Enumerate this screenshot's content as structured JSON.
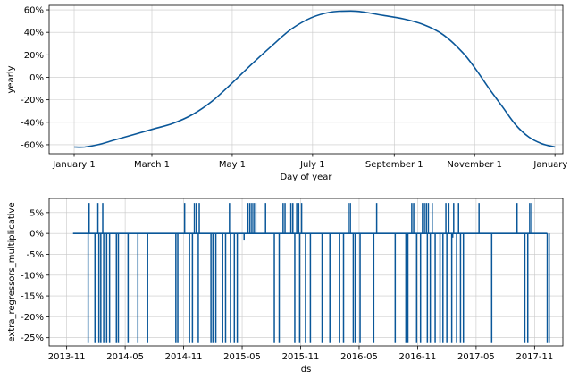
{
  "colors": {
    "line": "#0a5799",
    "grid": "#c8c8c8",
    "axis": "#000000"
  },
  "chart_data": [
    {
      "type": "line",
      "title": "",
      "xlabel": "Day of year",
      "ylabel": "yearly",
      "grid": true,
      "x_ticks": [
        {
          "day": 0,
          "label": "January 1"
        },
        {
          "day": 59,
          "label": "March 1"
        },
        {
          "day": 120,
          "label": "May 1"
        },
        {
          "day": 181,
          "label": "July 1"
        },
        {
          "day": 243,
          "label": "September 1"
        },
        {
          "day": 304,
          "label": "November 1"
        },
        {
          "day": 365,
          "label": "January 1"
        }
      ],
      "y_ticks": [
        {
          "value": -60,
          "label": "-60%"
        },
        {
          "value": -40,
          "label": "-40%"
        },
        {
          "value": -20,
          "label": "-20%"
        },
        {
          "value": 0,
          "label": "0%"
        },
        {
          "value": 20,
          "label": "20%"
        },
        {
          "value": 40,
          "label": "40%"
        },
        {
          "value": 60,
          "label": "60%"
        }
      ],
      "xlim": [
        -19,
        371
      ],
      "ylim": [
        -68,
        64
      ],
      "series": [
        {
          "x": [
            0,
            8,
            18,
            30,
            45,
            60,
            75,
            90,
            105,
            120,
            135,
            150,
            165,
            180,
            195,
            210,
            220,
            235,
            250,
            265,
            280,
            295,
            305,
            315,
            325,
            335,
            345,
            355,
            365
          ],
          "values": [
            -62,
            -62,
            -60,
            -56,
            -51,
            -46,
            -41,
            -33,
            -21,
            -5,
            12,
            28,
            43,
            53,
            58,
            59,
            58,
            55,
            52,
            47,
            38,
            22,
            7,
            -10,
            -26,
            -42,
            -53,
            -59,
            -62
          ]
        }
      ]
    },
    {
      "type": "line",
      "title": "",
      "xlabel": "ds",
      "ylabel": "extra_regressors_multiplicative",
      "grid": true,
      "x_ticks": [
        {
          "value": 0,
          "label": "2013-11"
        },
        {
          "value": 6,
          "label": "2014-05"
        },
        {
          "value": 12,
          "label": "2014-11"
        },
        {
          "value": 18,
          "label": "2015-05"
        },
        {
          "value": 24,
          "label": "2015-11"
        },
        {
          "value": 30,
          "label": "2016-05"
        },
        {
          "value": 36,
          "label": "2016-11"
        },
        {
          "value": 42,
          "label": "2017-05"
        },
        {
          "value": 48,
          "label": "2017-11"
        }
      ],
      "y_ticks": [
        {
          "value": -25,
          "label": "-25%"
        },
        {
          "value": -20,
          "label": "-20%"
        },
        {
          "value": -15,
          "label": "-15%"
        },
        {
          "value": -10,
          "label": "-10%"
        },
        {
          "value": -5,
          "label": "-5%"
        },
        {
          "value": 0,
          "label": "0%"
        },
        {
          "value": 5,
          "label": "5%"
        }
      ],
      "xlim": [
        -1.8,
        50.9
      ],
      "ylim": [
        -27,
        8.4
      ],
      "baseline": 0,
      "spikes_up": [
        2.3,
        3.2,
        3.7,
        12.1,
        13.1,
        13.3,
        13.6,
        16.7,
        18.6,
        18.8,
        19.0,
        19.2,
        19.4,
        20.4,
        22.2,
        22.4,
        23.0,
        23.2,
        23.6,
        23.8,
        24.1,
        28.9,
        29.1,
        31.8,
        35.4,
        35.6,
        36.5,
        36.7,
        36.9,
        37.1,
        37.5,
        38.9,
        39.2,
        39.7,
        40.2,
        42.3,
        46.2,
        47.5,
        47.7
      ],
      "spikes_down": [
        2.2,
        2.9,
        3.3,
        3.5,
        3.8,
        4.1,
        4.4,
        5.1,
        5.3,
        6.3,
        7.3,
        8.3,
        11.2,
        11.4,
        12.6,
        12.9,
        13.5,
        14.8,
        15.0,
        15.3,
        16.0,
        16.3,
        16.8,
        17.2,
        17.5,
        21.3,
        21.8,
        23.4,
        23.9,
        24.5,
        25.0,
        26.2,
        27.0,
        28.0,
        28.4,
        29.4,
        29.6,
        30.1,
        31.5,
        33.7,
        34.8,
        35.0,
        35.9,
        36.3,
        37.0,
        37.3,
        37.8,
        38.3,
        38.6,
        39.0,
        39.5,
        40.0,
        40.4,
        40.7,
        43.6,
        47.0,
        47.3,
        49.3,
        49.5
      ],
      "dips": [
        {
          "x": 18.2,
          "value": -1.7
        },
        {
          "x": 39.6,
          "value": -1.0
        }
      ]
    }
  ]
}
